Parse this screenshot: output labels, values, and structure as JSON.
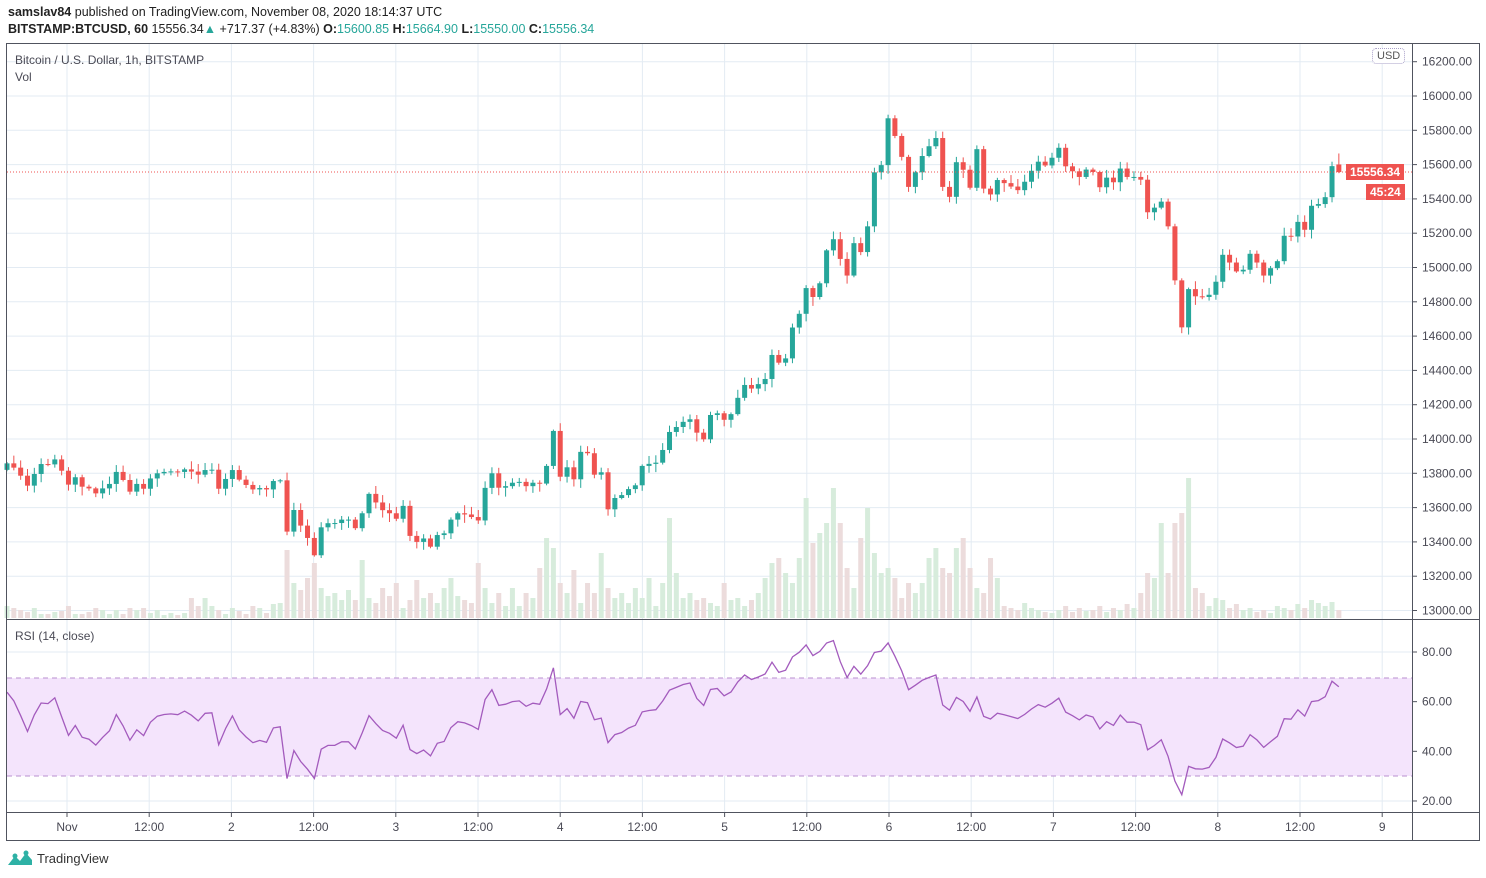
{
  "header": {
    "author": "samslav84",
    "published": "published on TradingView.com, November 08, 2020 18:14:37 UTC",
    "symbol": "BITSTAMP:BTCUSD, 60",
    "last": "15556.34",
    "change": "+717.37 (+4.83%)",
    "o_label": "O:",
    "o": "15600.85",
    "h_label": "H:",
    "h": "15664.90",
    "l_label": "L:",
    "l": "15550.00",
    "c_label": "C:",
    "c": "15556.34"
  },
  "main_pane": {
    "title": "Bitcoin / U.S. Dollar, 1h, BITSTAMP",
    "volume_label": "Vol",
    "currency": "USD"
  },
  "rsi_pane": {
    "title": "RSI (14, close)"
  },
  "price_tag": "15556.34",
  "countdown_tag": "45:24",
  "footer": {
    "brand": "TradingView"
  },
  "colors": {
    "up": "#26a69a",
    "down": "#ef5350",
    "vol_up": "#d7ecdc",
    "vol_down": "#ecdcdc",
    "rsi_line": "#a35bbd",
    "rsi_band": "#f4e4fc",
    "grid": "#e3ebf3"
  },
  "chart_data": {
    "type": "candlestick",
    "title": "Bitcoin / U.S. Dollar, 1h, BITSTAMP",
    "interval": "1h",
    "first_candle_open": 13820,
    "last_candle": {
      "o": 15600.85,
      "h": 15664.9,
      "l": 15550.0,
      "c": 15556.34
    },
    "closes": [
      13858,
      13833,
      13786,
      13728,
      13796,
      13854,
      13852,
      13881,
      13815,
      13734,
      13777,
      13722,
      13712,
      13683,
      13712,
      13738,
      13808,
      13761,
      13693,
      13738,
      13710,
      13770,
      13800,
      13808,
      13811,
      13808,
      13823,
      13810,
      13792,
      13819,
      13821,
      13710,
      13767,
      13819,
      13763,
      13732,
      13706,
      13714,
      13706,
      13755,
      13759,
      13460,
      13586,
      13495,
      13423,
      13322,
      13485,
      13509,
      13510,
      13530,
      13530,
      13480,
      13567,
      13680,
      13630,
      13585,
      13567,
      13535,
      13610,
      13435,
      13400,
      13420,
      13372,
      13440,
      13450,
      13530,
      13567,
      13560,
      13545,
      13525,
      13715,
      13800,
      13716,
      13725,
      13745,
      13750,
      13725,
      13745,
      13740,
      13843,
      14047,
      13780,
      13835,
      13765,
      13925,
      13917,
      13792,
      13806,
      13590,
      13656,
      13673,
      13708,
      13730,
      13843,
      13855,
      13862,
      13936,
      14041,
      14070,
      14100,
      14115,
      14037,
      13998,
      14140,
      14150,
      14112,
      14145,
      14240,
      14315,
      14294,
      14320,
      14350,
      14490,
      14445,
      14470,
      14650,
      14730,
      14880,
      14828,
      14908,
      15100,
      15165,
      15050,
      14953,
      15142,
      15090,
      15240,
      15555,
      15597,
      15870,
      15767,
      15645,
      15470,
      15555,
      15650,
      15707,
      15755,
      15470,
      15412,
      15614,
      15570,
      15465,
      15690,
      15460,
      15426,
      15510,
      15492,
      15472,
      15451,
      15500,
      15564,
      15617,
      15595,
      15640,
      15698,
      15590,
      15561,
      15528,
      15571,
      15557,
      15468,
      15524,
      15497,
      15577,
      15528,
      15528,
      15512,
      15322,
      15349,
      15384,
      15240,
      14925,
      14651,
      14874,
      14832,
      14828,
      14841,
      14917,
      15074,
      15029,
      14977,
      14987,
      15080,
      15029,
      14953,
      14996,
      15037,
      15185,
      15181,
      15266,
      15220,
      15360,
      15370,
      15410,
      15591,
      15556.34
    ],
    "volume": [
      12,
      10,
      8,
      6,
      10,
      4,
      4,
      6,
      7,
      12,
      4,
      4,
      6,
      10,
      8,
      4,
      8,
      4,
      10,
      8,
      10,
      5,
      8,
      3,
      5,
      3,
      5,
      20,
      12,
      20,
      12,
      8,
      4,
      10,
      7,
      4,
      12,
      10,
      5,
      14,
      15,
      68,
      35,
      28,
      40,
      55,
      30,
      22,
      25,
      18,
      28,
      18,
      58,
      20,
      15,
      30,
      22,
      35,
      10,
      18,
      38,
      20,
      25,
      15,
      30,
      40,
      22,
      18,
      15,
      55,
      30,
      15,
      25,
      12,
      30,
      12,
      25,
      20,
      50,
      80,
      70,
      35,
      25,
      48,
      15,
      35,
      25,
      65,
      30,
      20,
      25,
      15,
      30,
      20,
      40,
      12,
      35,
      100,
      45,
      20,
      25,
      18,
      20,
      15,
      12,
      35,
      18,
      20,
      12,
      18,
      25,
      40,
      55,
      60,
      45,
      35,
      60,
      120,
      75,
      85,
      95,
      130,
      95,
      50,
      30,
      80,
      110,
      65,
      45,
      50,
      40,
      20,
      35,
      25,
      35,
      60,
      70,
      50,
      45,
      70,
      80,
      50,
      30,
      25,
      60,
      40,
      12,
      10,
      8,
      15,
      10,
      8,
      6,
      5,
      8,
      12,
      6,
      10,
      7,
      8,
      12,
      6,
      10,
      8,
      14,
      10,
      25,
      45,
      40,
      95,
      45,
      95,
      105,
      140,
      30,
      25,
      12,
      20,
      18,
      10,
      14,
      8,
      10,
      6,
      8,
      5,
      12,
      10,
      8,
      14,
      10,
      18,
      15,
      12,
      16,
      8
    ],
    "price_axis": {
      "min": 13000,
      "max": 16200,
      "ticks": [
        "13000.00",
        "13200.00",
        "13400.00",
        "13600.00",
        "13800.00",
        "14000.00",
        "14200.00",
        "14400.00",
        "14600.00",
        "14800.00",
        "15000.00",
        "15200.00",
        "15400.00",
        "15600.00",
        "15800.00",
        "16000.00",
        "16200.00"
      ]
    },
    "rsi": {
      "period": 14,
      "source": "close",
      "upper_band": 70,
      "lower_band": 30,
      "ticks": [
        "20.00",
        "40.00",
        "60.00",
        "80.00"
      ]
    },
    "time_axis": {
      "labels": [
        "Nov",
        "12:00",
        "2",
        "12:00",
        "3",
        "12:00",
        "4",
        "12:00",
        "5",
        "12:00",
        "6",
        "12:00",
        "7",
        "12:00",
        "8",
        "12:00",
        "9"
      ]
    }
  }
}
